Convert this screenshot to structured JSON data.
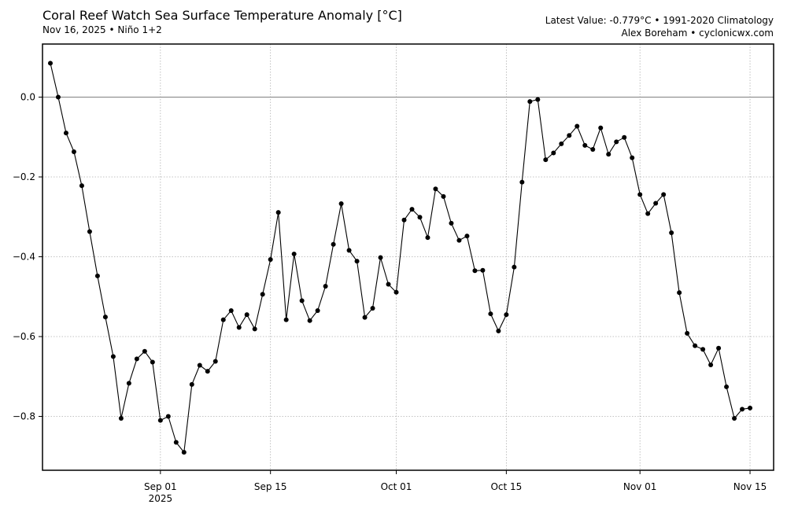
{
  "header": {
    "title": "Coral Reef Watch Sea Surface Temperature Anomaly [°C]",
    "subtitle": "Nov 16, 2025 • Niño 1+2",
    "latest_value": "Latest Value: -0.779°C • 1991-2020 Climatology",
    "credit": "Alex Boreham • cyclonicwx.com"
  },
  "chart_data": {
    "type": "line",
    "title": "Coral Reef Watch Sea Surface Temperature Anomaly [°C]",
    "subtitle": "Nov 16, 2025 • Niño 1+2",
    "xlabel": "",
    "ylabel": "",
    "x_start": "2025-08-18",
    "x_end": "2025-11-16",
    "xlim": [
      "2025-08-17",
      "2025-11-18"
    ],
    "ylim": [
      -0.935,
      0.133
    ],
    "reference_line": 0.0,
    "grid": true,
    "x_ticks": [
      {
        "date": "2025-09-01",
        "label": "Sep 01",
        "sublabel": "2025"
      },
      {
        "date": "2025-09-15",
        "label": "Sep 15",
        "sublabel": ""
      },
      {
        "date": "2025-10-01",
        "label": "Oct 01",
        "sublabel": ""
      },
      {
        "date": "2025-10-15",
        "label": "Oct 15",
        "sublabel": ""
      },
      {
        "date": "2025-11-01",
        "label": "Nov 01",
        "sublabel": ""
      },
      {
        "date": "2025-11-15",
        "label": "Nov 15",
        "sublabel": ""
      }
    ],
    "y_ticks": [
      {
        "value": 0.0,
        "label": "0.0"
      },
      {
        "value": -0.2,
        "label": "−0.2"
      },
      {
        "value": -0.4,
        "label": "−0.4"
      },
      {
        "value": -0.6,
        "label": "−0.6"
      },
      {
        "value": -0.8,
        "label": "−0.8"
      }
    ],
    "series": [
      {
        "values": [
          0.085,
          0.0,
          -0.09,
          -0.137,
          -0.222,
          -0.337,
          -0.448,
          -0.551,
          -0.65,
          -0.805,
          -0.717,
          -0.656,
          -0.637,
          -0.664,
          -0.81,
          -0.8,
          -0.865,
          -0.89,
          -0.72,
          -0.672,
          -0.687,
          -0.662,
          -0.558,
          -0.535,
          -0.577,
          -0.545,
          -0.581,
          -0.494,
          -0.407,
          -0.289,
          -0.558,
          -0.393,
          -0.51,
          -0.56,
          -0.535,
          -0.474,
          -0.369,
          -0.267,
          -0.384,
          -0.411,
          -0.552,
          -0.529,
          -0.402,
          -0.469,
          -0.489,
          -0.308,
          -0.281,
          -0.301,
          -0.352,
          -0.23,
          -0.249,
          -0.316,
          -0.359,
          -0.348,
          -0.435,
          -0.434,
          -0.543,
          -0.586,
          -0.545,
          -0.426,
          -0.213,
          -0.011,
          -0.006,
          -0.157,
          -0.14,
          -0.117,
          -0.096,
          -0.073,
          -0.121,
          -0.131,
          -0.077,
          -0.143,
          -0.112,
          -0.101,
          -0.152,
          -0.244,
          -0.292,
          -0.266,
          -0.244,
          -0.34,
          -0.49,
          -0.592,
          -0.623,
          -0.632,
          -0.671,
          -0.629,
          -0.726,
          -0.805,
          -0.782,
          -0.779
        ]
      }
    ]
  }
}
